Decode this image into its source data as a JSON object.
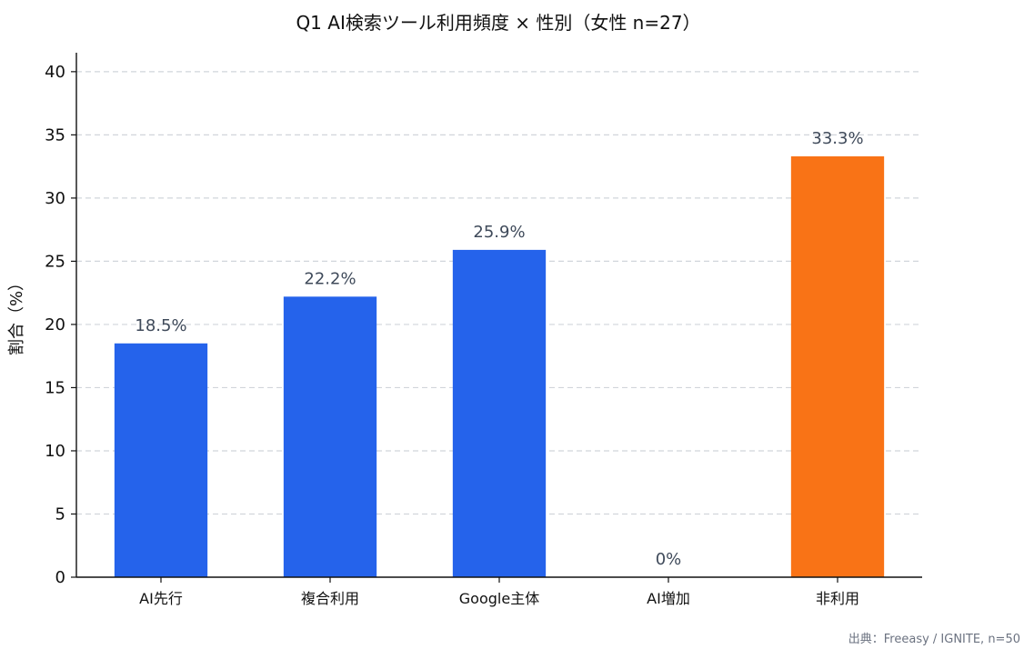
{
  "chart_data": {
    "type": "bar",
    "title": "Q1 AI検索ツール利用頻度 × 性別（女性 n=27）",
    "xlabel": "",
    "ylabel": "割合（%）",
    "categories": [
      "AI先行",
      "複合利用",
      "Google主体",
      "AI増加",
      "非利用"
    ],
    "values": [
      18.5,
      22.2,
      25.9,
      0,
      33.3
    ],
    "value_labels": [
      "18.5%",
      "22.2%",
      "25.9%",
      "0%",
      "33.3%"
    ],
    "ylim": [
      0,
      41.5
    ],
    "yticks": [
      0,
      5,
      10,
      15,
      20,
      25,
      30,
      35,
      40
    ],
    "grid": "y-dashed",
    "colors": {
      "default": "#2563eb",
      "highlight": "#f97316",
      "grid": "#d1d5db",
      "axis": "#111111",
      "value_label": "#3f4a5a"
    },
    "highlight_index": 4,
    "source": "出典：Freeasy / IGNITE, n=50"
  }
}
